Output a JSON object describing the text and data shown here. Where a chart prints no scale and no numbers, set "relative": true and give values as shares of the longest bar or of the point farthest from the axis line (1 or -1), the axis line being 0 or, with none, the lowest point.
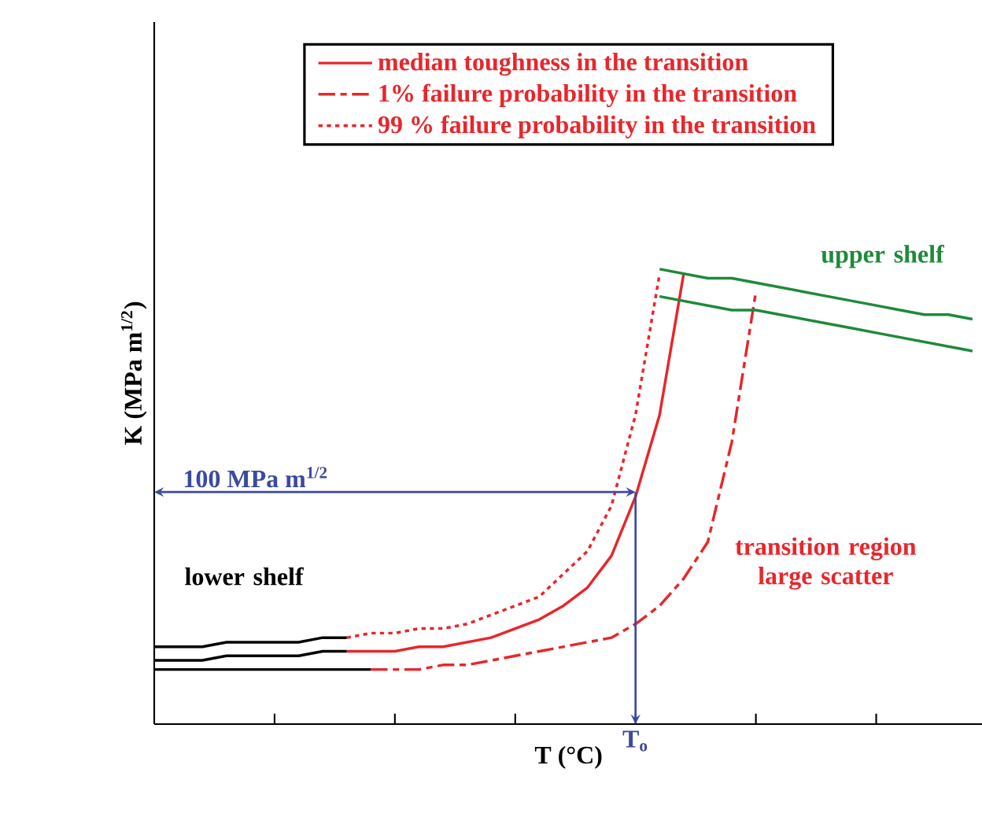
{
  "chart_data": {
    "type": "line",
    "relative": true,
    "xlabel": "T (°C)",
    "ylabel": "K (MPa m$^{1/2}$)",
    "categories": [
      null,
      null,
      null,
      null,
      null,
      null,
      null,
      null,
      null,
      null,
      null,
      null,
      null,
      null,
      null,
      null,
      null,
      null,
      null,
      null,
      null,
      null,
      null,
      null,
      null,
      null,
      null,
      null,
      null,
      null,
      null,
      null,
      null,
      null,
      null
    ],
    "legend": "top",
    "series": [
      {
        "name": "median toughness in the transition",
        "color": "#e8262b",
        "line_style": "solid",
        "values": [
          null,
          null,
          null,
          null,
          null,
          null,
          null,
          null,
          0.16,
          0.16,
          0.16,
          0.17,
          0.17,
          0.18,
          0.19,
          0.21,
          0.23,
          0.26,
          0.3,
          0.37,
          0.5,
          0.68,
          0.99,
          null,
          null,
          null,
          null,
          null,
          null,
          null,
          null,
          null,
          null,
          null,
          null
        ]
      },
      {
        "name": "1%  failure probability in the transition",
        "color": "#e8262b",
        "line_style": "dashed",
        "values": [
          null,
          null,
          null,
          null,
          null,
          null,
          null,
          null,
          null,
          0.12,
          0.12,
          0.12,
          0.13,
          0.13,
          0.14,
          0.15,
          0.16,
          0.17,
          0.18,
          0.19,
          0.22,
          0.26,
          0.32,
          0.4,
          0.62,
          0.95,
          null,
          null,
          null,
          null,
          null,
          null,
          null,
          null,
          null
        ]
      },
      {
        "name": "99 % failure probability in the transition",
        "color": "#e8262b",
        "line_style": "dotted",
        "values": [
          null,
          null,
          null,
          null,
          null,
          null,
          null,
          null,
          0.19,
          0.2,
          0.2,
          0.21,
          0.21,
          0.22,
          0.24,
          0.26,
          0.28,
          0.33,
          0.38,
          0.48,
          0.68,
          0.99,
          null,
          null,
          null,
          null,
          null,
          null,
          null,
          null,
          null,
          null,
          null,
          null,
          null
        ]
      },
      {
        "color": "#000000",
        "line_style": "solid",
        "values": [
          0.17,
          0.17,
          0.17,
          0.18,
          0.18,
          0.18,
          0.18,
          0.19,
          0.19,
          null,
          null,
          null,
          null,
          null,
          null,
          null,
          null,
          null,
          null,
          null,
          null,
          null,
          null,
          null,
          null,
          null,
          null,
          null,
          null,
          null,
          null,
          null,
          null,
          null,
          null
        ]
      },
      {
        "color": "#000000",
        "line_style": "solid",
        "values": [
          0.14,
          0.14,
          0.14,
          0.15,
          0.15,
          0.15,
          0.15,
          0.16,
          0.16,
          null,
          null,
          null,
          null,
          null,
          null,
          null,
          null,
          null,
          null,
          null,
          null,
          null,
          null,
          null,
          null,
          null,
          null,
          null,
          null,
          null,
          null,
          null,
          null,
          null,
          null
        ]
      },
      {
        "color": "#000000",
        "line_style": "solid",
        "values": [
          0.12,
          0.12,
          0.12,
          0.12,
          0.12,
          0.12,
          0.12,
          0.12,
          0.12,
          0.12,
          null,
          null,
          null,
          null,
          null,
          null,
          null,
          null,
          null,
          null,
          null,
          null,
          null,
          null,
          null,
          null,
          null,
          null,
          null,
          null,
          null,
          null,
          null,
          null,
          null
        ]
      },
      {
        "color": "#1e8a3a",
        "line_style": "solid",
        "values": [
          null,
          null,
          null,
          null,
          null,
          null,
          null,
          null,
          null,
          null,
          null,
          null,
          null,
          null,
          null,
          null,
          null,
          null,
          null,
          null,
          null,
          1.0,
          0.99,
          0.98,
          0.98,
          0.97,
          0.96,
          0.95,
          0.94,
          0.93,
          0.92,
          0.91,
          0.9,
          0.9,
          0.89
        ]
      },
      {
        "color": "#1e8a3a",
        "line_style": "solid",
        "values": [
          null,
          null,
          null,
          null,
          null,
          null,
          null,
          null,
          null,
          null,
          null,
          null,
          null,
          null,
          null,
          null,
          null,
          null,
          null,
          null,
          null,
          0.94,
          0.93,
          0.92,
          0.91,
          0.91,
          0.9,
          0.89,
          0.88,
          0.87,
          0.86,
          0.85,
          0.84,
          0.83,
          0.82
        ]
      }
    ],
    "annotations": [
      "100 MPa m$^{1/2}$",
      "T$_{o}$",
      "lower shelf",
      "upper shelf",
      "transition region large scatter"
    ]
  }
}
